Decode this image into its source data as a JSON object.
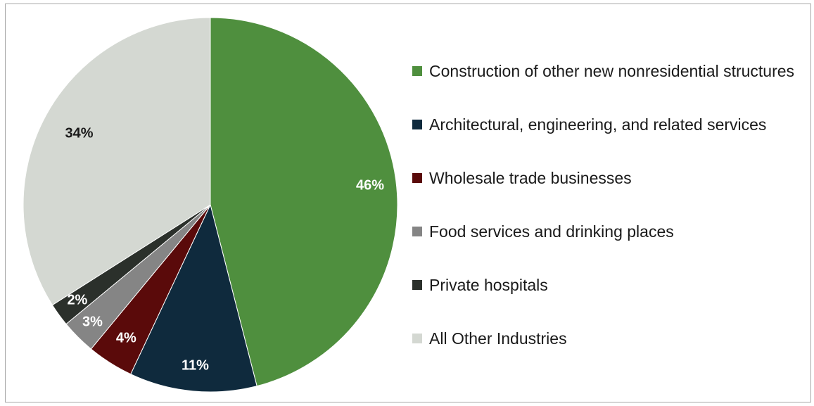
{
  "chart_data": {
    "type": "pie",
    "title": "",
    "slices": [
      {
        "label": "Construction of other new nonresidential structures",
        "value": 46,
        "value_label": "46%",
        "color": "#4f8f3e",
        "label_color": "#ffffff"
      },
      {
        "label": "Architectural, engineering, and related services",
        "value": 11,
        "value_label": "11%",
        "color": "#0f2a3d",
        "label_color": "#ffffff"
      },
      {
        "label": "Wholesale trade businesses",
        "value": 4,
        "value_label": "4%",
        "color": "#5a0a0a",
        "label_color": "#ffffff"
      },
      {
        "label": "Food services and drinking places",
        "value": 3,
        "value_label": "3%",
        "color": "#858585",
        "label_color": "#ffffff"
      },
      {
        "label": "Private hospitals",
        "value": 2,
        "value_label": "2%",
        "color": "#2b302b",
        "label_color": "#ffffff"
      },
      {
        "label": "All Other Industries",
        "value": 34,
        "value_label": "34%",
        "color": "#d4d8d2",
        "label_color": "#1a1a1a"
      }
    ],
    "start_angle": "12 o'clock",
    "direction": "clockwise",
    "legend_position": "right"
  }
}
